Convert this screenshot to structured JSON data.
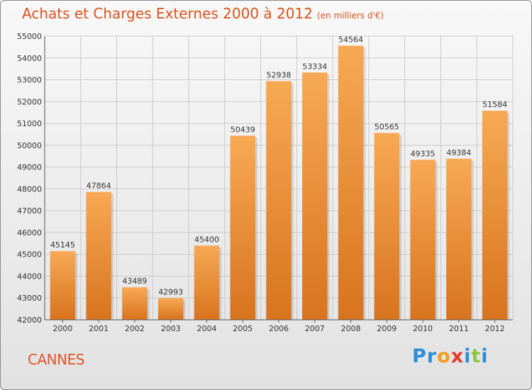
{
  "title": "Achats et Charges Externes 2000 à 2012",
  "subtitle": "(en milliers d'€)",
  "city": "CANNES",
  "logo": {
    "letters": [
      {
        "char": "P",
        "color": "#2b8fd6"
      },
      {
        "char": "r",
        "color": "#2b8fd6"
      },
      {
        "char": "o",
        "color": "#f29b1d"
      },
      {
        "char": "x",
        "color": "#e23a2a"
      },
      {
        "char": "i",
        "color": "#2b8fd6"
      },
      {
        "char": "t",
        "color": "#8cc63f"
      },
      {
        "char": "i",
        "color": "#2b8fd6"
      }
    ]
  },
  "colors": {
    "bar_top": "#f7a954",
    "bar_bottom": "#d8731e",
    "title": "#d9531e",
    "grid": "#c9c9c9"
  },
  "chart_data": {
    "type": "bar",
    "categories": [
      "2000",
      "2001",
      "2002",
      "2003",
      "2004",
      "2005",
      "2006",
      "2007",
      "2008",
      "2009",
      "2010",
      "2011",
      "2012"
    ],
    "values": [
      45145,
      47864,
      43489,
      42993,
      45400,
      50439,
      52938,
      53334,
      54564,
      50565,
      49335,
      49384,
      51584
    ],
    "ylim": [
      42000,
      55000
    ],
    "yticks": [
      42000,
      43000,
      44000,
      45000,
      46000,
      47000,
      48000,
      49000,
      50000,
      51000,
      52000,
      53000,
      54000,
      55000
    ],
    "grid": true,
    "xlabel": "",
    "ylabel": ""
  }
}
